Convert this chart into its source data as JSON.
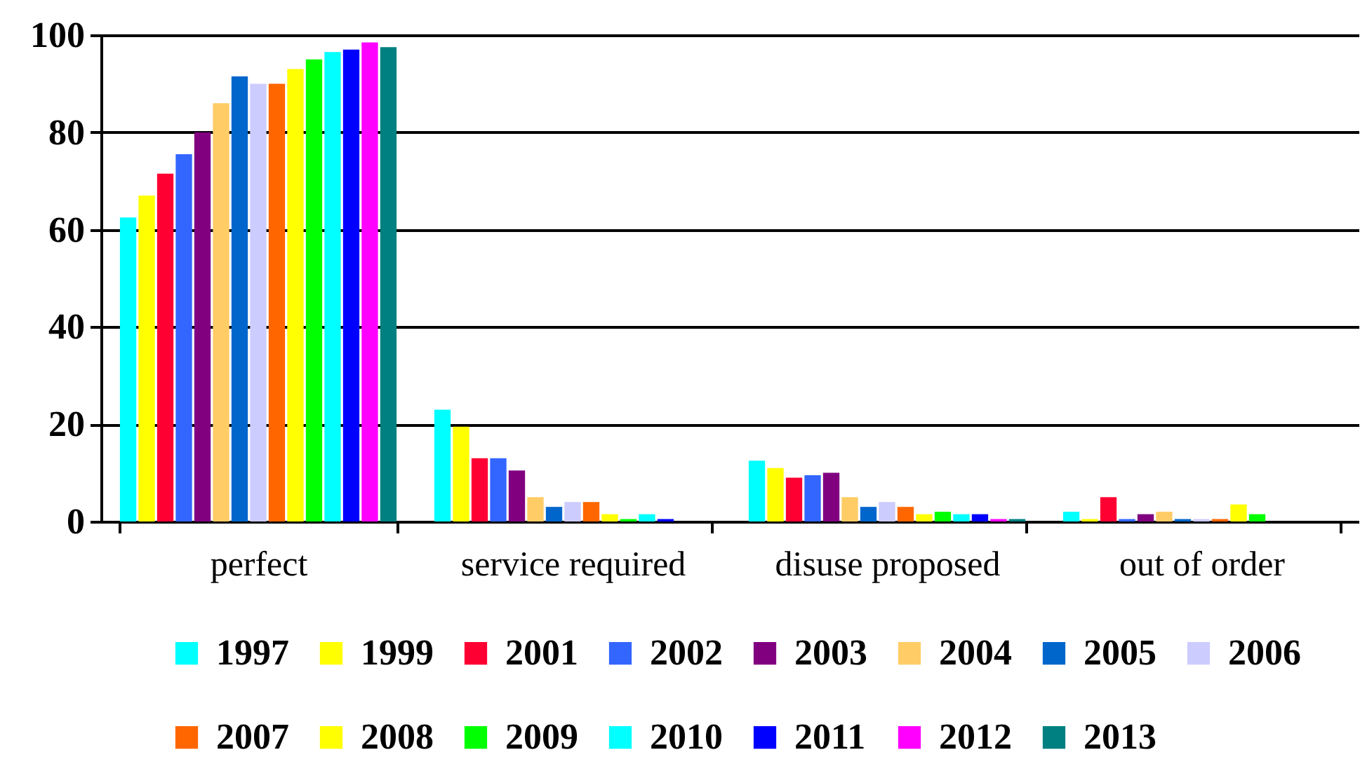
{
  "chart_data": {
    "type": "bar",
    "categories": [
      "perfect",
      "service required",
      "disuse proposed",
      "out of order"
    ],
    "series": [
      {
        "name": "1997",
        "color": "#00ffff",
        "values": [
          62.5,
          23,
          12.5,
          2
        ]
      },
      {
        "name": "1999",
        "color": "#ffff00",
        "values": [
          67,
          19.5,
          11,
          0.5
        ]
      },
      {
        "name": "2001",
        "color": "#ff0033",
        "values": [
          71.5,
          13,
          9,
          5
        ]
      },
      {
        "name": "2002",
        "color": "#3366ff",
        "values": [
          75.5,
          13,
          9.5,
          0.5
        ]
      },
      {
        "name": "2003",
        "color": "#800080",
        "values": [
          80,
          10.5,
          10,
          1.5
        ]
      },
      {
        "name": "2004",
        "color": "#ffcc66",
        "values": [
          86,
          5,
          5,
          2
        ]
      },
      {
        "name": "2005",
        "color": "#0066cc",
        "values": [
          91.5,
          3,
          3,
          0.5
        ]
      },
      {
        "name": "2006",
        "color": "#ccccff",
        "values": [
          90,
          4,
          4,
          0.5
        ]
      },
      {
        "name": "2007",
        "color": "#ff6600",
        "values": [
          90,
          4,
          3,
          0.5
        ]
      },
      {
        "name": "2008",
        "color": "#ffff01",
        "values": [
          93,
          1.5,
          1.5,
          3.5
        ]
      },
      {
        "name": "2009",
        "color": "#00ff00",
        "values": [
          95,
          0.5,
          2,
          1.5
        ]
      },
      {
        "name": "2010",
        "color": "#00fffe",
        "values": [
          96.5,
          1.5,
          1.5,
          0
        ]
      },
      {
        "name": "2011",
        "color": "#0000ff",
        "values": [
          97,
          0.5,
          1.5,
          0
        ]
      },
      {
        "name": "2012",
        "color": "#ff00ff",
        "values": [
          98.5,
          0,
          0.5,
          0
        ]
      },
      {
        "name": "2013",
        "color": "#008080",
        "values": [
          97.5,
          0,
          0.5,
          0
        ]
      }
    ],
    "ylim": [
      0,
      100
    ],
    "yticks": [
      0,
      20,
      40,
      60,
      80,
      100
    ],
    "grid": "y",
    "legend": "bottom"
  }
}
